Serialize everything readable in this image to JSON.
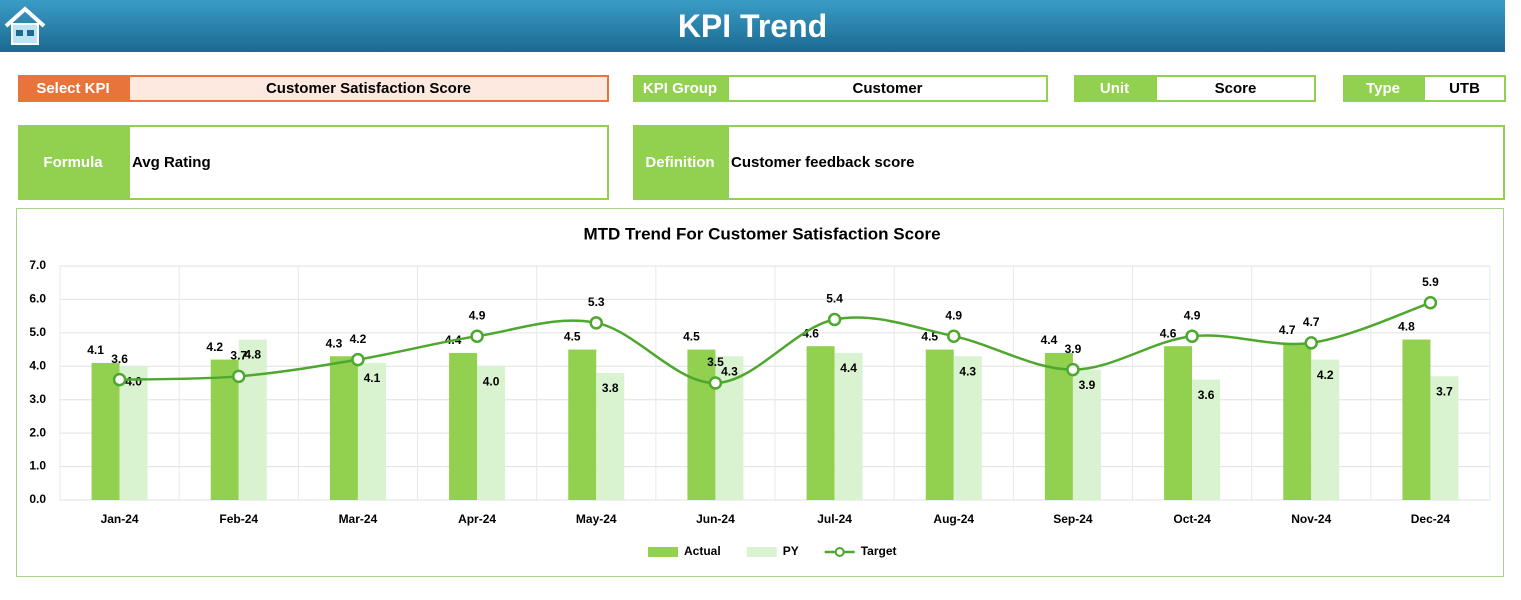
{
  "header": {
    "title": "KPI Trend"
  },
  "fields": {
    "select_kpi": {
      "label": "Select KPI",
      "value": "Customer Satisfaction Score"
    },
    "kpi_group": {
      "label": "KPI Group",
      "value": "Customer"
    },
    "unit": {
      "label": "Unit",
      "value": "Score"
    },
    "type": {
      "label": "Type",
      "value": "UTB"
    },
    "formula": {
      "label": "Formula",
      "value": "Avg Rating"
    },
    "definition": {
      "label": "Definition",
      "value": "Customer feedback score"
    }
  },
  "chart_data": {
    "type": "bar-line",
    "title": "MTD Trend For Customer Satisfaction Score",
    "categories": [
      "Jan-24",
      "Feb-24",
      "Mar-24",
      "Apr-24",
      "May-24",
      "Jun-24",
      "Jul-24",
      "Aug-24",
      "Sep-24",
      "Oct-24",
      "Nov-24",
      "Dec-24"
    ],
    "series": [
      {
        "name": "Actual",
        "color": "#92d050",
        "kind": "bar",
        "values": [
          4.1,
          4.2,
          4.3,
          4.4,
          4.5,
          4.5,
          4.6,
          4.5,
          4.4,
          4.6,
          4.7,
          4.8
        ],
        "value_labels": [
          "4.1",
          "4.2",
          "4.3",
          "4.4",
          "4.5",
          "4.5",
          "4.6",
          "4.5",
          "4.4",
          "4.6",
          "4.7",
          "4.8"
        ]
      },
      {
        "name": "PY",
        "color": "#d9f2d0",
        "kind": "bar",
        "values": [
          4.0,
          4.8,
          4.1,
          4.0,
          3.8,
          4.3,
          4.4,
          4.3,
          3.9,
          3.6,
          4.2,
          3.7
        ],
        "value_labels": [
          "4.0",
          "4.8",
          "4.1",
          "4.0",
          "3.8",
          "4.3",
          "4.4",
          "4.3",
          "3.9",
          "3.6",
          "4.2",
          "3.7"
        ]
      },
      {
        "name": "Target",
        "color": "#4ea72e",
        "kind": "line",
        "values": [
          3.6,
          3.7,
          4.2,
          4.9,
          5.3,
          3.5,
          5.4,
          4.9,
          3.9,
          4.9,
          4.7,
          5.9
        ],
        "value_labels": [
          "3.6",
          "3.7",
          "4.2",
          "4.9",
          "5.3",
          "3.5",
          "5.4",
          "4.9",
          "3.9",
          "4.9",
          "4.7",
          "5.9"
        ]
      }
    ],
    "ylim": [
      0,
      7
    ],
    "yticks": [
      {
        "value": 0,
        "label": "0.0"
      },
      {
        "value": 1,
        "label": "1.0"
      },
      {
        "value": 2,
        "label": "2.0"
      },
      {
        "value": 3,
        "label": "3.0"
      },
      {
        "value": 4,
        "label": "4.0"
      },
      {
        "value": 5,
        "label": "5.0"
      },
      {
        "value": 6,
        "label": "6.0"
      },
      {
        "value": 7,
        "label": "7.0"
      }
    ],
    "grid": true,
    "legend": "bottom"
  }
}
